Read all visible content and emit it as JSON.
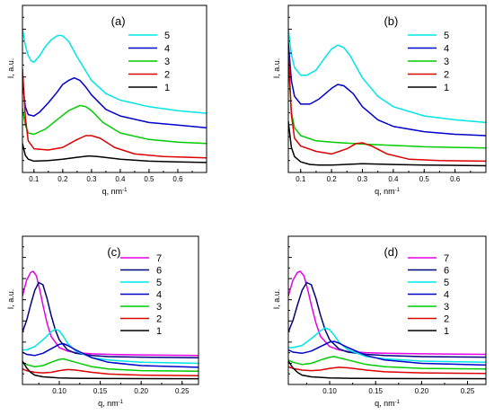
{
  "chart_data": [
    {
      "type": "line",
      "panel_label": "(a)",
      "xlabel": "q, nm",
      "xlabel_sup": "-1",
      "ylabel": "I, a.u.",
      "xlim": [
        0.06,
        0.7
      ],
      "xticks": [
        0.1,
        0.2,
        0.3,
        0.4,
        0.5,
        0.6
      ],
      "xtick_labels": [
        "0.1",
        "0.2",
        "0.3",
        "0.4",
        "0.5",
        "0.6"
      ],
      "ylim": [
        0,
        10
      ],
      "grid": false,
      "legend": "top-right",
      "series": [
        {
          "name": "5",
          "color": "#00e5e5",
          "x": [
            0.06,
            0.07,
            0.08,
            0.09,
            0.1,
            0.12,
            0.14,
            0.16,
            0.18,
            0.19,
            0.2,
            0.22,
            0.25,
            0.3,
            0.35,
            0.4,
            0.5,
            0.6,
            0.7
          ],
          "y": [
            10.5,
            9.3,
            8.5,
            8.1,
            8.0,
            8.5,
            9.2,
            9.7,
            10.0,
            10.05,
            10.0,
            9.6,
            8.4,
            6.6,
            5.6,
            5.1,
            4.6,
            4.3,
            4.1
          ]
        },
        {
          "name": "4",
          "color": "#0000cc",
          "x": [
            0.06,
            0.07,
            0.08,
            0.1,
            0.12,
            0.15,
            0.18,
            0.2,
            0.22,
            0.24,
            0.26,
            0.28,
            0.3,
            0.35,
            0.4,
            0.5,
            0.6,
            0.7
          ],
          "y": [
            6.5,
            4.6,
            4.0,
            3.9,
            4.2,
            4.9,
            5.7,
            6.3,
            6.6,
            6.8,
            6.6,
            6.1,
            5.5,
            4.4,
            3.9,
            3.4,
            3.2,
            3.0
          ]
        },
        {
          "name": "3",
          "color": "#00cc00",
          "x": [
            0.06,
            0.07,
            0.08,
            0.1,
            0.14,
            0.18,
            0.22,
            0.26,
            0.28,
            0.3,
            0.34,
            0.4,
            0.5,
            0.6,
            0.7
          ],
          "y": [
            4.5,
            3.2,
            2.6,
            2.5,
            2.9,
            3.6,
            4.3,
            4.7,
            4.6,
            4.3,
            3.4,
            2.6,
            2.1,
            1.9,
            1.8
          ]
        },
        {
          "name": "2",
          "color": "#dd0000",
          "x": [
            0.06,
            0.07,
            0.08,
            0.1,
            0.15,
            0.2,
            0.25,
            0.28,
            0.3,
            0.33,
            0.38,
            0.45,
            0.55,
            0.7
          ],
          "y": [
            7.5,
            3.8,
            2.0,
            1.4,
            1.3,
            1.5,
            2.1,
            2.4,
            2.4,
            2.2,
            1.5,
            1.0,
            0.8,
            0.7
          ]
        },
        {
          "name": "1",
          "color": "#000000",
          "x": [
            0.06,
            0.07,
            0.08,
            0.1,
            0.15,
            0.2,
            0.25,
            0.29,
            0.32,
            0.4,
            0.5,
            0.6,
            0.7
          ],
          "y": [
            1.8,
            0.9,
            0.6,
            0.45,
            0.5,
            0.6,
            0.75,
            0.85,
            0.8,
            0.6,
            0.45,
            0.4,
            0.35
          ]
        }
      ]
    },
    {
      "type": "line",
      "panel_label": "(b)",
      "xlabel": "q, nm",
      "xlabel_sup": "-1",
      "ylabel": "I, a.u.",
      "xlim": [
        0.06,
        0.7
      ],
      "xticks": [
        0.1,
        0.2,
        0.3,
        0.4,
        0.5,
        0.6
      ],
      "xtick_labels": [
        "0.1",
        "0.2",
        "0.3",
        "0.4",
        "0.5",
        "0.6"
      ],
      "ylim": [
        0,
        10
      ],
      "grid": false,
      "legend": "top-right",
      "series": [
        {
          "name": "5",
          "color": "#00e5e5",
          "x": [
            0.06,
            0.07,
            0.08,
            0.1,
            0.12,
            0.15,
            0.18,
            0.2,
            0.22,
            0.24,
            0.26,
            0.3,
            0.35,
            0.4,
            0.5,
            0.6,
            0.7
          ],
          "y": [
            10.5,
            8.6,
            7.6,
            7.0,
            7.0,
            7.4,
            8.4,
            9.0,
            9.3,
            9.1,
            8.5,
            6.8,
            5.4,
            4.6,
            3.9,
            3.6,
            3.4
          ]
        },
        {
          "name": "4",
          "color": "#0000cc",
          "x": [
            0.06,
            0.07,
            0.08,
            0.1,
            0.13,
            0.16,
            0.2,
            0.22,
            0.24,
            0.27,
            0.3,
            0.35,
            0.4,
            0.5,
            0.6,
            0.7
          ],
          "y": [
            9.5,
            6.6,
            5.4,
            4.8,
            4.8,
            5.2,
            6.0,
            6.3,
            6.2,
            5.6,
            4.6,
            3.6,
            3.1,
            2.7,
            2.5,
            2.4
          ]
        },
        {
          "name": "3",
          "color": "#00cc00",
          "x": [
            0.06,
            0.07,
            0.08,
            0.1,
            0.15,
            0.2,
            0.3,
            0.4,
            0.5,
            0.6,
            0.7
          ],
          "y": [
            8.0,
            4.2,
            3.0,
            2.4,
            2.0,
            1.9,
            1.75,
            1.65,
            1.55,
            1.5,
            1.45
          ]
        },
        {
          "name": "2",
          "color": "#dd0000",
          "x": [
            0.06,
            0.07,
            0.08,
            0.1,
            0.15,
            0.2,
            0.25,
            0.28,
            0.3,
            0.33,
            0.38,
            0.45,
            0.55,
            0.7
          ],
          "y": [
            9.0,
            4.0,
            2.2,
            1.6,
            1.2,
            1.0,
            1.4,
            1.8,
            1.85,
            1.6,
            1.0,
            0.6,
            0.5,
            0.45
          ]
        },
        {
          "name": "1",
          "color": "#000000",
          "x": [
            0.06,
            0.07,
            0.08,
            0.1,
            0.13,
            0.16,
            0.2,
            0.3,
            0.4,
            0.5,
            0.7
          ],
          "y": [
            3.5,
            1.5,
            0.8,
            0.4,
            0.2,
            0.15,
            0.15,
            0.25,
            0.2,
            0.15,
            0.1
          ]
        }
      ]
    },
    {
      "type": "line",
      "panel_label": "(c)",
      "xlabel": "q, nm",
      "xlabel_sup": "-1",
      "ylabel": "I, a.u.",
      "xlim": [
        0.055,
        0.27
      ],
      "xticks": [
        0.1,
        0.15,
        0.2,
        0.25
      ],
      "xtick_labels": [
        "0.10",
        "0.15",
        "0.20",
        "0.25"
      ],
      "ylim": [
        0,
        10
      ],
      "grid": false,
      "legend": "top-right",
      "series": [
        {
          "name": "7",
          "color": "#e600e6",
          "x": [
            0.055,
            0.06,
            0.065,
            0.068,
            0.072,
            0.076,
            0.08,
            0.085,
            0.09,
            0.1,
            0.11,
            0.12,
            0.14,
            0.16,
            0.2,
            0.27
          ],
          "y": [
            7.4,
            8.8,
            9.5,
            9.6,
            9.2,
            8.0,
            6.6,
            5.0,
            3.8,
            2.8,
            2.5,
            2.35,
            2.25,
            2.2,
            2.15,
            2.1
          ]
        },
        {
          "name": "6",
          "color": "#000080",
          "x": [
            0.055,
            0.06,
            0.065,
            0.07,
            0.075,
            0.08,
            0.085,
            0.09,
            0.095,
            0.1,
            0.11,
            0.12,
            0.14,
            0.16,
            0.2,
            0.27
          ],
          "y": [
            4.2,
            5.2,
            6.6,
            7.9,
            8.6,
            8.4,
            7.2,
            5.7,
            4.4,
            3.5,
            2.6,
            2.3,
            2.1,
            2.0,
            1.95,
            1.9
          ]
        },
        {
          "name": "5",
          "color": "#00e5e5",
          "x": [
            0.055,
            0.06,
            0.07,
            0.08,
            0.09,
            0.095,
            0.1,
            0.105,
            0.11,
            0.12,
            0.14,
            0.16,
            0.2,
            0.27
          ],
          "y": [
            2.6,
            2.6,
            2.9,
            3.5,
            4.2,
            4.45,
            4.3,
            3.8,
            3.2,
            2.5,
            1.9,
            1.7,
            1.5,
            1.4
          ]
        },
        {
          "name": "4",
          "color": "#0000cc",
          "x": [
            0.055,
            0.06,
            0.07,
            0.08,
            0.09,
            0.1,
            0.105,
            0.11,
            0.12,
            0.14,
            0.16,
            0.2,
            0.27
          ],
          "y": [
            2.4,
            2.2,
            2.1,
            2.3,
            2.7,
            3.1,
            3.15,
            3.0,
            2.6,
            1.9,
            1.5,
            1.2,
            1.05
          ]
        },
        {
          "name": "3",
          "color": "#00cc00",
          "x": [
            0.055,
            0.06,
            0.07,
            0.08,
            0.09,
            0.1,
            0.105,
            0.11,
            0.12,
            0.14,
            0.16,
            0.2,
            0.27
          ],
          "y": [
            1.5,
            1.3,
            1.1,
            1.2,
            1.5,
            1.75,
            1.8,
            1.7,
            1.5,
            1.1,
            0.9,
            0.75,
            0.7
          ]
        },
        {
          "name": "2",
          "color": "#dd0000",
          "x": [
            0.055,
            0.06,
            0.07,
            0.08,
            0.09,
            0.1,
            0.11,
            0.12,
            0.14,
            0.16,
            0.2,
            0.27
          ],
          "y": [
            0.9,
            0.75,
            0.6,
            0.55,
            0.6,
            0.75,
            0.85,
            0.8,
            0.6,
            0.45,
            0.35,
            0.3
          ]
        },
        {
          "name": "1",
          "color": "#000000",
          "x": [
            0.055,
            0.06,
            0.065,
            0.07,
            0.08,
            0.1,
            0.12,
            0.16,
            0.2,
            0.27
          ],
          "y": [
            1.6,
            1.0,
            0.6,
            0.35,
            0.2,
            0.1,
            0.07,
            0.05,
            0.04,
            0.03
          ]
        }
      ]
    },
    {
      "type": "line",
      "panel_label": "(d)",
      "xlabel": "q, nm",
      "xlabel_sup": "-1",
      "ylabel": "I, a.u.",
      "xlim": [
        0.055,
        0.27
      ],
      "xticks": [
        0.1,
        0.15,
        0.2,
        0.25
      ],
      "xtick_labels": [
        "0.10",
        "0.15",
        "0.20",
        "0.25"
      ],
      "ylim": [
        0,
        10
      ],
      "grid": false,
      "legend": "top-right",
      "series": [
        {
          "name": "7",
          "color": "#e600e6",
          "x": [
            0.055,
            0.06,
            0.065,
            0.068,
            0.072,
            0.076,
            0.08,
            0.085,
            0.09,
            0.1,
            0.11,
            0.12,
            0.14,
            0.16,
            0.2,
            0.27
          ],
          "y": [
            7.4,
            8.8,
            9.5,
            9.6,
            9.2,
            8.0,
            6.6,
            5.0,
            3.8,
            2.9,
            2.6,
            2.45,
            2.35,
            2.3,
            2.25,
            2.2
          ]
        },
        {
          "name": "6",
          "color": "#000080",
          "x": [
            0.055,
            0.06,
            0.065,
            0.07,
            0.075,
            0.08,
            0.085,
            0.09,
            0.095,
            0.1,
            0.11,
            0.12,
            0.14,
            0.16,
            0.2,
            0.27
          ],
          "y": [
            4.2,
            5.2,
            6.6,
            7.9,
            8.6,
            8.4,
            7.2,
            5.7,
            4.4,
            3.5,
            2.7,
            2.4,
            2.2,
            2.1,
            2.0,
            1.95
          ]
        },
        {
          "name": "5",
          "color": "#00e5e5",
          "x": [
            0.055,
            0.06,
            0.07,
            0.08,
            0.09,
            0.095,
            0.1,
            0.105,
            0.11,
            0.12,
            0.14,
            0.16,
            0.2,
            0.27
          ],
          "y": [
            2.8,
            2.8,
            3.0,
            3.6,
            4.3,
            4.55,
            4.4,
            3.9,
            3.3,
            2.6,
            2.0,
            1.8,
            1.6,
            1.5
          ]
        },
        {
          "name": "4",
          "color": "#0000cc",
          "x": [
            0.055,
            0.06,
            0.07,
            0.08,
            0.09,
            0.1,
            0.105,
            0.11,
            0.12,
            0.14,
            0.16,
            0.2,
            0.27
          ],
          "y": [
            2.6,
            2.4,
            2.3,
            2.5,
            2.9,
            3.3,
            3.35,
            3.2,
            2.8,
            2.1,
            1.7,
            1.4,
            1.25
          ]
        },
        {
          "name": "3",
          "color": "#00cc00",
          "x": [
            0.055,
            0.06,
            0.07,
            0.08,
            0.09,
            0.1,
            0.105,
            0.11,
            0.12,
            0.14,
            0.16,
            0.2,
            0.27
          ],
          "y": [
            1.7,
            1.5,
            1.3,
            1.4,
            1.7,
            1.95,
            2.0,
            1.9,
            1.7,
            1.3,
            1.1,
            0.95,
            0.9
          ]
        },
        {
          "name": "2",
          "color": "#dd0000",
          "x": [
            0.055,
            0.06,
            0.07,
            0.08,
            0.09,
            0.1,
            0.11,
            0.12,
            0.14,
            0.16,
            0.2,
            0.27
          ],
          "y": [
            1.1,
            0.95,
            0.8,
            0.75,
            0.8,
            0.95,
            1.05,
            1.0,
            0.8,
            0.65,
            0.55,
            0.5
          ]
        },
        {
          "name": "1",
          "color": "#000000",
          "x": [
            0.055,
            0.06,
            0.065,
            0.07,
            0.08,
            0.1,
            0.12,
            0.16,
            0.2,
            0.27
          ],
          "y": [
            1.6,
            1.0,
            0.6,
            0.35,
            0.2,
            0.1,
            0.07,
            0.05,
            0.04,
            0.03
          ]
        }
      ]
    }
  ]
}
